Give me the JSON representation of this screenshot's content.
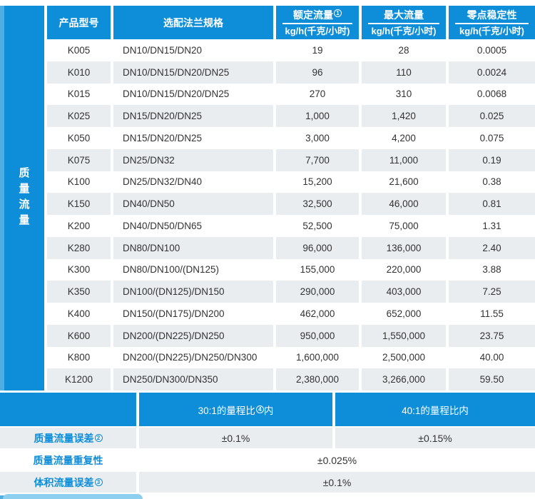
{
  "colors": {
    "blue": "#0e8ed8",
    "blue_light_edge": "#4fade2",
    "row_alt_gray": "#e9edf0",
    "tab_blue": "#8dcfee",
    "text_dark": "#333333"
  },
  "sidebar": {
    "label": "质量流量"
  },
  "table": {
    "headers": {
      "model": "产品型号",
      "flange": "选配法兰规格",
      "rated": {
        "title": "额定流量",
        "footnote": "1",
        "unit": "kg/h(千克/小时)"
      },
      "max": {
        "title": "最大流量",
        "unit": "kg/h(千克/小时)"
      },
      "zero": {
        "title": "零点稳定性",
        "unit": "kg/h(千克/小时)"
      }
    },
    "rows": [
      [
        "K005",
        "DN10/DN15/DN20",
        "19",
        "28",
        "0.0005"
      ],
      [
        "K010",
        "DN10/DN15/DN20/DN25",
        "96",
        "110",
        "0.0024"
      ],
      [
        "K015",
        "DN10/DN15/DN20/DN25",
        "270",
        "310",
        "0.0068"
      ],
      [
        "K025",
        "DN15/DN20/DN25",
        "1,000",
        "1,420",
        "0.025"
      ],
      [
        "K050",
        "DN15/DN20/DN25",
        "3,000",
        "4,200",
        "0.075"
      ],
      [
        "K075",
        "DN25/DN32",
        "7,700",
        "11,000",
        "0.19"
      ],
      [
        "K100",
        "DN25/DN32/DN40",
        "15,200",
        "21,600",
        "0.38"
      ],
      [
        "K150",
        "DN40/DN50",
        "32,500",
        "46,000",
        "0.81"
      ],
      [
        "K200",
        "DN40/DN50/DN65",
        "52,500",
        "75,000",
        "1.31"
      ],
      [
        "K280",
        "DN80/DN100",
        "96,000",
        "136,000",
        "2.40"
      ],
      [
        "K300",
        "DN80/DN100/(DN125)",
        "155,000",
        "220,000",
        "3.88"
      ],
      [
        "K350",
        "DN100/(DN125)/DN150",
        "290,000",
        "403,000",
        "7.25"
      ],
      [
        "K400",
        "DN150/(DN175)/DN200",
        "462,000",
        "652,000",
        "11.55"
      ],
      [
        "K600",
        "DN200/(DN225)/DN250",
        "950,000",
        "1,550,000",
        "23.75"
      ],
      [
        "K800",
        "DN200/(DN225)/DN250/DN300",
        "1,600,000",
        "2,500,000",
        "40.00"
      ],
      [
        "K1200",
        "DN250/DN300/DN350",
        "2,380,000",
        "3,266,000",
        "59.50"
      ]
    ]
  },
  "accuracy": {
    "band": {
      "mid_prefix": "30:1的量程比",
      "mid_footnote": "4",
      "mid_suffix": "内",
      "right": "40:1的量程比内"
    },
    "mass_error": {
      "label": "质量流量误差",
      "footnote": "2",
      "v30": "±0.1%",
      "v40": "±0.15%"
    },
    "repeatability": {
      "label": "质量流量重复性",
      "value": "±0.025%"
    },
    "volume_error": {
      "label": "体积流量误差",
      "footnote": "3",
      "value": "±0.1%"
    }
  }
}
